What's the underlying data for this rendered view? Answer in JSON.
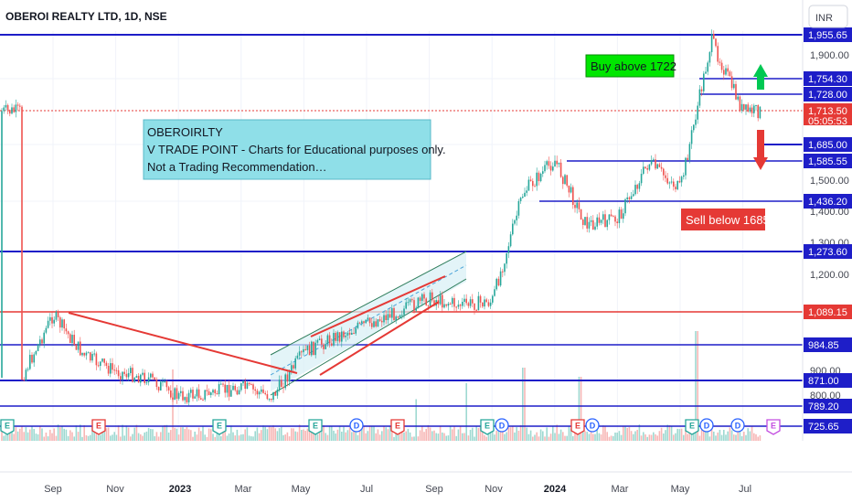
{
  "header": {
    "title": "OBEROI REALTY LTD, 1D, NSE",
    "currency": "INR"
  },
  "note": {
    "lines": [
      "OBEROIRLTY",
      "V TRADE POINT - Charts for Educational purposes only.",
      "Not a Trading Recommendation…"
    ]
  },
  "labels": {
    "buy": "Buy above 1722",
    "sell": "Sell below 1685"
  },
  "countdown": "05:05:53",
  "colors": {
    "up": "#26a69a",
    "down": "#ef5350",
    "level": "#1e1ec8",
    "red_level": "#e53935",
    "buy_bg": "#00e600",
    "sell_bg": "#e53935",
    "note_bg": "#8fdfe8"
  },
  "chart_data": {
    "type": "candlestick",
    "title": "OBEROI REALTY LTD, 1D, NSE",
    "x_ticks": [
      "Sep",
      "Nov",
      "2023",
      "Mar",
      "May",
      "Jul",
      "Sep",
      "Nov",
      "2024",
      "Mar",
      "May",
      "Jul"
    ],
    "y_ticks": [
      "1,900.00",
      "1,500.00",
      "1,400.00",
      "1,300.00",
      "1,200.00",
      "900.00",
      "800.00"
    ],
    "price_levels": [
      {
        "value": "1,955.65",
        "color": "#1e1ec8"
      },
      {
        "value": "1,754.30",
        "color": "#1e1ec8"
      },
      {
        "value": "1,728.00",
        "color": "#1e1ec8"
      },
      {
        "value": "1,713.50",
        "color": "#e53935",
        "current": true
      },
      {
        "value": "1,685.00",
        "color": "#1e1ec8"
      },
      {
        "value": "1,585.55",
        "color": "#1e1ec8"
      },
      {
        "value": "1,436.20",
        "color": "#1e1ec8"
      },
      {
        "value": "1,273.60",
        "color": "#1e1ec8"
      },
      {
        "value": "1,089.15",
        "color": "#e53935"
      },
      {
        "value": "984.85",
        "color": "#1e1ec8"
      },
      {
        "value": "871.00",
        "color": "#1e1ec8"
      },
      {
        "value": "789.20",
        "color": "#1e1ec8"
      },
      {
        "value": "725.65",
        "color": "#1e1ec8"
      }
    ],
    "trend_path": [
      [
        "Aug 2022",
        880
      ],
      [
        "Sep 2022",
        1080
      ],
      [
        "Oct 2022",
        950
      ],
      [
        "Nov 2022",
        900
      ],
      [
        "Dec 2022",
        880
      ],
      [
        "Jan 2023",
        820
      ],
      [
        "Feb 2023",
        830
      ],
      [
        "Mar 2023",
        850
      ],
      [
        "Apr 2023",
        820
      ],
      [
        "May 2023",
        960
      ],
      [
        "Jun 2023",
        1010
      ],
      [
        "Jul 2023",
        1050
      ],
      [
        "Aug 2023",
        1090
      ],
      [
        "Sep 2023",
        1130
      ],
      [
        "Oct 2023",
        1110
      ],
      [
        "Nov 2023",
        1120
      ],
      [
        "Dec 2023",
        1470
      ],
      [
        "Jan 2024",
        1590
      ],
      [
        "Feb 2024",
        1360
      ],
      [
        "Mar 2024",
        1380
      ],
      [
        "Apr 2024",
        1580
      ],
      [
        "May 2024",
        1480
      ],
      [
        "Jun 2024",
        1930
      ],
      [
        "Jul 2024",
        1713
      ]
    ],
    "events": [
      {
        "x_month": "Aug 2022",
        "kind": "E"
      },
      {
        "x_month": "Oct 2022",
        "kind": "E"
      },
      {
        "x_month": "Feb 2023",
        "kind": "E"
      },
      {
        "x_month": "May 2023",
        "kind": "E"
      },
      {
        "x_month": "Jun 2023",
        "kind": "D"
      },
      {
        "x_month": "Aug 2023",
        "kind": "E"
      },
      {
        "x_month": "Nov 2023",
        "kind": "E"
      },
      {
        "x_month": "Nov 2023",
        "kind": "D"
      },
      {
        "x_month": "Feb 2024",
        "kind": "E"
      },
      {
        "x_month": "Feb 2024",
        "kind": "D"
      },
      {
        "x_month": "May 2024",
        "kind": "E"
      },
      {
        "x_month": "May 2024",
        "kind": "D"
      },
      {
        "x_month": "Jul 2024",
        "kind": "D"
      },
      {
        "x_month": "Aug 2024",
        "kind": "E"
      }
    ],
    "grid": true,
    "legend": "none"
  }
}
